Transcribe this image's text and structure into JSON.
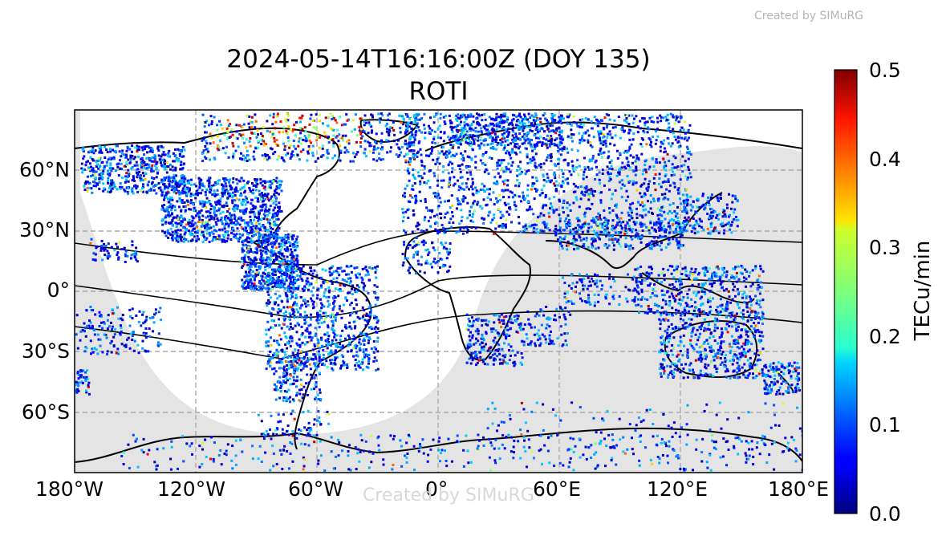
{
  "watermark_top": "Created by SIMuRG",
  "watermark_center": "Created by SIMuRG",
  "title_line1": "2024-05-14T16:16:00Z (DOY 135)",
  "title_line2": "ROTI",
  "colorbar": {
    "label": "TECu/min",
    "range": [
      0.0,
      0.5
    ],
    "colormap": "jet",
    "ticks": [
      "0.0",
      "0.1",
      "0.2",
      "0.3",
      "0.4",
      "0.5"
    ]
  },
  "map": {
    "projection": "PlateCarree",
    "lon_range": [
      -180,
      180
    ],
    "lat_range": [
      -90,
      90
    ],
    "lon_ticks": [
      "180°W",
      "120°W",
      "60°W",
      "0°",
      "60°E",
      "120°E",
      "180°E"
    ],
    "lat_ticks": [
      "60°N",
      "30°N",
      "0°",
      "30°S",
      "60°S"
    ],
    "gridlines": true,
    "night_shading_color": "#e4e4e4",
    "coastline_color": "#000000",
    "lakes_color": "#8fb0d8"
  }
}
